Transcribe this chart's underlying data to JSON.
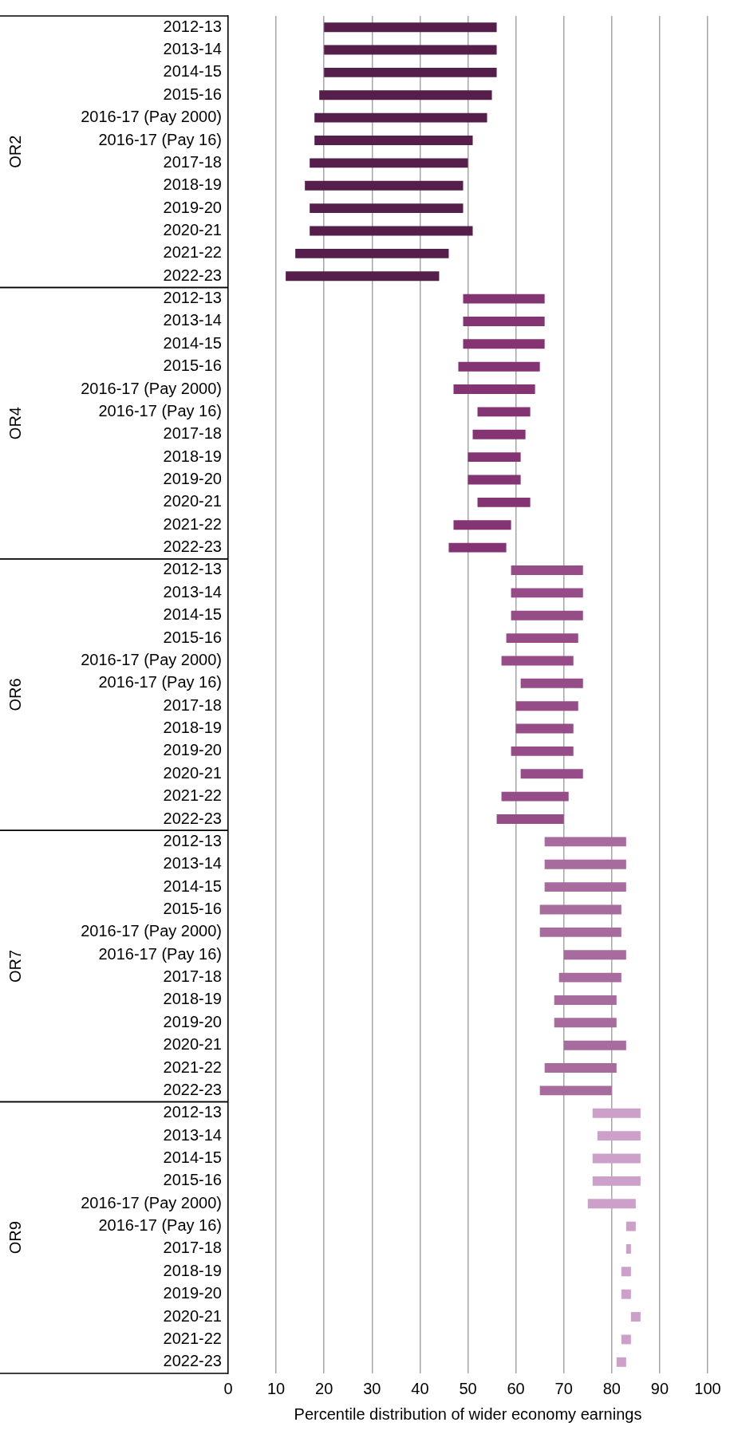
{
  "chart_data": {
    "type": "bar",
    "orientation": "horizontal",
    "xlabel": "Percentile distribution of wider economy earnings",
    "categories": [
      "2012-13",
      "2013-14",
      "2014-15",
      "2015-16",
      "2016-17 (Pay 2000)",
      "2016-17 (Pay 16)",
      "2017-18",
      "2018-19",
      "2019-20",
      "2020-21",
      "2021-22",
      "2022-23",
      "2012-13",
      "2013-14",
      "2014-15",
      "2015-16",
      "2016-17 (Pay 2000)",
      "2016-17 (Pay 16)",
      "2017-18",
      "2018-19",
      "2019-20",
      "2020-21",
      "2021-22",
      "2022-23",
      "2012-13",
      "2013-14",
      "2014-15",
      "2015-16",
      "2016-17 (Pay 2000)",
      "2016-17 (Pay 16)",
      "2017-18",
      "2018-19",
      "2019-20",
      "2020-21",
      "2021-22",
      "2022-23",
      "2012-13",
      "2013-14",
      "2014-15",
      "2015-16",
      "2016-17 (Pay 2000)",
      "2016-17 (Pay 16)",
      "2017-18",
      "2018-19",
      "2019-20",
      "2020-21",
      "2021-22",
      "2022-23",
      "2012-13",
      "2013-14",
      "2014-15",
      "2015-16",
      "2016-17 (Pay 2000)",
      "2016-17 (Pay 16)",
      "2017-18",
      "2018-19",
      "2019-20",
      "2020-21",
      "2021-22",
      "2022-23"
    ],
    "series": [
      {
        "color": "#561f4b",
        "base": [
          20,
          20,
          20,
          19,
          18,
          18,
          17,
          16,
          17,
          17,
          14,
          12,
          null,
          null,
          null,
          null,
          null,
          null,
          null,
          null,
          null,
          null,
          null,
          null,
          null,
          null,
          null,
          null,
          null,
          null,
          null,
          null,
          null,
          null,
          null,
          null,
          null,
          null,
          null,
          null,
          null,
          null,
          null,
          null,
          null,
          null,
          null,
          null,
          null,
          null,
          null,
          null,
          null,
          null,
          null,
          null,
          null,
          null,
          null,
          null
        ],
        "values": [
          36,
          36,
          36,
          36,
          36,
          33,
          33,
          33,
          32,
          34,
          32,
          32,
          null,
          null,
          null,
          null,
          null,
          null,
          null,
          null,
          null,
          null,
          null,
          null,
          null,
          null,
          null,
          null,
          null,
          null,
          null,
          null,
          null,
          null,
          null,
          null,
          null,
          null,
          null,
          null,
          null,
          null,
          null,
          null,
          null,
          null,
          null,
          null,
          null,
          null,
          null,
          null,
          null,
          null,
          null,
          null,
          null,
          null,
          null,
          null
        ]
      },
      {
        "color": "#843373",
        "base": [
          null,
          null,
          null,
          null,
          null,
          null,
          null,
          null,
          null,
          null,
          null,
          null,
          49,
          49,
          49,
          48,
          47,
          52,
          51,
          50,
          50,
          52,
          47,
          46,
          null,
          null,
          null,
          null,
          null,
          null,
          null,
          null,
          null,
          null,
          null,
          null,
          null,
          null,
          null,
          null,
          null,
          null,
          null,
          null,
          null,
          null,
          null,
          null,
          null,
          null,
          null,
          null,
          null,
          null,
          null,
          null,
          null,
          null,
          null,
          null
        ],
        "values": [
          null,
          null,
          null,
          null,
          null,
          null,
          null,
          null,
          null,
          null,
          null,
          null,
          17,
          17,
          17,
          17,
          17,
          11,
          11,
          11,
          11,
          11,
          12,
          12,
          null,
          null,
          null,
          null,
          null,
          null,
          null,
          null,
          null,
          null,
          null,
          null,
          null,
          null,
          null,
          null,
          null,
          null,
          null,
          null,
          null,
          null,
          null,
          null,
          null,
          null,
          null,
          null,
          null,
          null,
          null,
          null,
          null,
          null,
          null,
          null
        ]
      },
      {
        "color": "#964c87",
        "base": [
          null,
          null,
          null,
          null,
          null,
          null,
          null,
          null,
          null,
          null,
          null,
          null,
          null,
          null,
          null,
          null,
          null,
          null,
          null,
          null,
          null,
          null,
          null,
          null,
          59,
          59,
          59,
          58,
          57,
          61,
          60,
          60,
          59,
          61,
          57,
          56,
          null,
          null,
          null,
          null,
          null,
          null,
          null,
          null,
          null,
          null,
          null,
          null,
          null,
          null,
          null,
          null,
          null,
          null,
          null,
          null,
          null,
          null,
          null,
          null
        ],
        "values": [
          null,
          null,
          null,
          null,
          null,
          null,
          null,
          null,
          null,
          null,
          null,
          null,
          null,
          null,
          null,
          null,
          null,
          null,
          null,
          null,
          null,
          null,
          null,
          null,
          15,
          15,
          15,
          15,
          15,
          13,
          13,
          12,
          13,
          13,
          14,
          14,
          null,
          null,
          null,
          null,
          null,
          null,
          null,
          null,
          null,
          null,
          null,
          null,
          null,
          null,
          null,
          null,
          null,
          null,
          null,
          null,
          null,
          null,
          null,
          null
        ]
      },
      {
        "color": "#a76b9d",
        "base": [
          null,
          null,
          null,
          null,
          null,
          null,
          null,
          null,
          null,
          null,
          null,
          null,
          null,
          null,
          null,
          null,
          null,
          null,
          null,
          null,
          null,
          null,
          null,
          null,
          null,
          null,
          null,
          null,
          null,
          null,
          null,
          null,
          null,
          null,
          null,
          null,
          66,
          66,
          66,
          65,
          65,
          70,
          69,
          68,
          68,
          70,
          66,
          65,
          null,
          null,
          null,
          null,
          null,
          null,
          null,
          null,
          null,
          null,
          null,
          null
        ],
        "values": [
          null,
          null,
          null,
          null,
          null,
          null,
          null,
          null,
          null,
          null,
          null,
          null,
          null,
          null,
          null,
          null,
          null,
          null,
          null,
          null,
          null,
          null,
          null,
          null,
          null,
          null,
          null,
          null,
          null,
          null,
          null,
          null,
          null,
          null,
          null,
          null,
          17,
          17,
          17,
          17,
          17,
          13,
          13,
          13,
          13,
          13,
          15,
          15,
          null,
          null,
          null,
          null,
          null,
          null,
          null,
          null,
          null,
          null,
          null,
          null
        ]
      },
      {
        "color": "#cca0c9",
        "base": [
          null,
          null,
          null,
          null,
          null,
          null,
          null,
          null,
          null,
          null,
          null,
          null,
          null,
          null,
          null,
          null,
          null,
          null,
          null,
          null,
          null,
          null,
          null,
          null,
          null,
          null,
          null,
          null,
          null,
          null,
          null,
          null,
          null,
          null,
          null,
          null,
          null,
          null,
          null,
          null,
          null,
          null,
          null,
          null,
          null,
          null,
          null,
          null,
          76,
          77,
          76,
          76,
          75,
          83,
          83,
          82,
          82,
          84,
          82,
          81
        ],
        "values": [
          null,
          null,
          null,
          null,
          null,
          null,
          null,
          null,
          null,
          null,
          null,
          null,
          null,
          null,
          null,
          null,
          null,
          null,
          null,
          null,
          null,
          null,
          null,
          null,
          null,
          null,
          null,
          null,
          null,
          null,
          null,
          null,
          null,
          null,
          null,
          null,
          null,
          null,
          null,
          null,
          null,
          null,
          null,
          null,
          null,
          null,
          null,
          null,
          10,
          9,
          10,
          10,
          10,
          2,
          1,
          2,
          2,
          2,
          2,
          2
        ]
      }
    ],
    "annotations": [
      "OR2",
      "OR4",
      "OR6",
      "OR7",
      "OR9"
    ],
    "xlim": [
      0,
      100
    ],
    "xticks": [
      0,
      10,
      20,
      30,
      40,
      50,
      60,
      70,
      80,
      90,
      100
    ],
    "grid": "x"
  }
}
